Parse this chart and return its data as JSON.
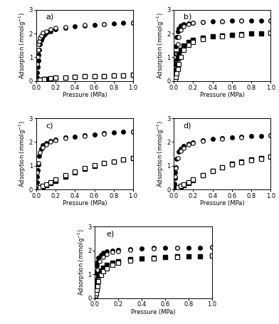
{
  "subplots": [
    {
      "label": "a)",
      "co2_ads_x": [
        0.005,
        0.01,
        0.015,
        0.02,
        0.025,
        0.03,
        0.04,
        0.05,
        0.06,
        0.07,
        0.08,
        0.1,
        0.15,
        0.2,
        0.3,
        0.4,
        0.5,
        0.6,
        0.7,
        0.8,
        0.9,
        1.0
      ],
      "co2_ads_y": [
        0.15,
        0.35,
        0.6,
        0.85,
        1.1,
        1.3,
        1.55,
        1.72,
        1.82,
        1.9,
        1.95,
        2.02,
        2.1,
        2.18,
        2.25,
        2.3,
        2.33,
        2.37,
        2.4,
        2.42,
        2.44,
        2.46
      ],
      "co2_des_x": [
        0.01,
        0.015,
        0.02,
        0.025,
        0.03,
        0.04,
        0.05,
        0.07,
        0.1,
        0.15,
        0.2,
        0.3,
        0.5,
        0.7,
        1.0
      ],
      "co2_des_y": [
        0.7,
        1.0,
        1.3,
        1.55,
        1.68,
        1.82,
        1.92,
        2.02,
        2.1,
        2.18,
        2.23,
        2.28,
        2.35,
        2.4,
        2.46
      ],
      "ch4_ads_x": [
        0.005,
        0.01,
        0.02,
        0.03,
        0.05,
        0.08,
        0.1,
        0.15,
        0.2,
        0.3,
        0.4,
        0.5,
        0.6,
        0.7,
        0.8,
        0.9,
        1.0
      ],
      "ch4_ads_y": [
        0.01,
        0.02,
        0.03,
        0.04,
        0.06,
        0.08,
        0.1,
        0.12,
        0.14,
        0.16,
        0.18,
        0.2,
        0.21,
        0.22,
        0.24,
        0.25,
        0.27
      ],
      "ch4_des_x": [
        0.02,
        0.04,
        0.08,
        0.15,
        0.2,
        0.3,
        0.4,
        0.5,
        0.6,
        0.7,
        0.8,
        0.9,
        1.0
      ],
      "ch4_des_y": [
        0.03,
        0.06,
        0.09,
        0.12,
        0.14,
        0.16,
        0.18,
        0.2,
        0.21,
        0.22,
        0.24,
        0.25,
        0.27
      ],
      "ylim": [
        0,
        3
      ]
    },
    {
      "label": "b)",
      "co2_ads_x": [
        0.005,
        0.01,
        0.015,
        0.02,
        0.03,
        0.04,
        0.05,
        0.07,
        0.1,
        0.15,
        0.2,
        0.3,
        0.4,
        0.5,
        0.6,
        0.7,
        0.8,
        0.9,
        1.0
      ],
      "co2_ads_y": [
        0.55,
        0.85,
        1.15,
        1.45,
        1.85,
        2.1,
        2.22,
        2.32,
        2.38,
        2.43,
        2.46,
        2.49,
        2.51,
        2.52,
        2.53,
        2.53,
        2.53,
        2.54,
        2.54
      ],
      "co2_des_x": [
        0.005,
        0.01,
        0.015,
        0.02,
        0.03,
        0.04,
        0.05,
        0.07,
        0.1,
        0.15,
        0.2,
        0.3,
        0.5,
        0.7,
        1.0
      ],
      "co2_des_y": [
        0.22,
        0.38,
        0.58,
        0.78,
        1.15,
        1.55,
        1.85,
        2.15,
        2.3,
        2.4,
        2.44,
        2.48,
        2.51,
        2.53,
        2.54
      ],
      "ch4_ads_x": [
        0.005,
        0.01,
        0.015,
        0.02,
        0.03,
        0.04,
        0.05,
        0.07,
        0.1,
        0.15,
        0.2,
        0.3,
        0.4,
        0.5,
        0.6,
        0.7,
        0.8,
        0.9,
        1.0
      ],
      "ch4_ads_y": [
        0.08,
        0.18,
        0.32,
        0.48,
        0.72,
        0.95,
        1.12,
        1.32,
        1.5,
        1.65,
        1.72,
        1.82,
        1.88,
        1.92,
        1.95,
        1.97,
        1.99,
        2.01,
        2.03
      ],
      "ch4_des_x": [
        0.005,
        0.01,
        0.015,
        0.02,
        0.03,
        0.04,
        0.05,
        0.07,
        0.1,
        0.15,
        0.2,
        0.3,
        0.5,
        0.7,
        1.0
      ],
      "ch4_des_y": [
        0.02,
        0.06,
        0.1,
        0.18,
        0.32,
        0.52,
        0.72,
        1.0,
        1.3,
        1.52,
        1.63,
        1.75,
        1.87,
        1.95,
        2.03
      ],
      "ylim": [
        0,
        3
      ]
    },
    {
      "label": "c)",
      "co2_ads_x": [
        0.005,
        0.01,
        0.015,
        0.02,
        0.03,
        0.05,
        0.07,
        0.1,
        0.15,
        0.2,
        0.3,
        0.4,
        0.5,
        0.6,
        0.7,
        0.8,
        0.9,
        1.0
      ],
      "co2_ads_y": [
        0.3,
        0.55,
        0.82,
        1.05,
        1.4,
        1.7,
        1.85,
        1.95,
        2.05,
        2.1,
        2.18,
        2.23,
        2.28,
        2.32,
        2.36,
        2.39,
        2.42,
        2.44
      ],
      "co2_des_x": [
        0.01,
        0.02,
        0.04,
        0.07,
        0.1,
        0.15,
        0.2,
        0.3,
        0.5,
        0.7,
        1.0
      ],
      "co2_des_y": [
        0.72,
        1.1,
        1.55,
        1.78,
        1.9,
        2.0,
        2.07,
        2.15,
        2.25,
        2.33,
        2.44
      ],
      "ch4_ads_x": [
        0.02,
        0.04,
        0.07,
        0.1,
        0.15,
        0.2,
        0.3,
        0.4,
        0.5,
        0.6,
        0.7,
        0.8,
        0.9,
        1.0
      ],
      "ch4_ads_y": [
        0.04,
        0.07,
        0.12,
        0.18,
        0.27,
        0.37,
        0.55,
        0.72,
        0.87,
        1.0,
        1.1,
        1.18,
        1.25,
        1.32
      ],
      "ch4_des_x": [
        0.04,
        0.07,
        0.1,
        0.15,
        0.2,
        0.3,
        0.4,
        0.5,
        0.6,
        0.7,
        0.8,
        0.9,
        1.0
      ],
      "ch4_des_y": [
        0.1,
        0.15,
        0.22,
        0.32,
        0.43,
        0.62,
        0.77,
        0.9,
        1.02,
        1.1,
        1.18,
        1.25,
        1.32
      ],
      "ylim": [
        0,
        3
      ]
    },
    {
      "label": "d)",
      "co2_ads_x": [
        0.005,
        0.01,
        0.015,
        0.02,
        0.03,
        0.05,
        0.07,
        0.1,
        0.15,
        0.2,
        0.3,
        0.4,
        0.5,
        0.6,
        0.7,
        0.8,
        0.9,
        1.0
      ],
      "co2_ads_y": [
        0.25,
        0.48,
        0.72,
        0.95,
        1.28,
        1.58,
        1.72,
        1.82,
        1.92,
        1.98,
        2.07,
        2.12,
        2.17,
        2.2,
        2.22,
        2.24,
        2.26,
        2.28
      ],
      "co2_des_x": [
        0.01,
        0.02,
        0.04,
        0.07,
        0.1,
        0.15,
        0.2,
        0.3,
        0.5,
        0.7,
        1.0
      ],
      "co2_des_y": [
        0.55,
        0.9,
        1.32,
        1.62,
        1.75,
        1.88,
        1.95,
        2.05,
        2.14,
        2.2,
        2.28
      ],
      "ch4_ads_x": [
        0.02,
        0.04,
        0.07,
        0.1,
        0.15,
        0.2,
        0.3,
        0.4,
        0.5,
        0.6,
        0.7,
        0.8,
        0.9,
        1.0
      ],
      "ch4_ads_y": [
        0.04,
        0.07,
        0.12,
        0.18,
        0.28,
        0.4,
        0.6,
        0.78,
        0.95,
        1.08,
        1.18,
        1.26,
        1.32,
        1.37
      ],
      "ch4_des_x": [
        0.04,
        0.07,
        0.1,
        0.15,
        0.2,
        0.3,
        0.4,
        0.5,
        0.6,
        0.7,
        0.8,
        0.9,
        1.0
      ],
      "ch4_des_y": [
        0.1,
        0.15,
        0.22,
        0.32,
        0.43,
        0.62,
        0.78,
        0.93,
        1.06,
        1.15,
        1.23,
        1.3,
        1.37
      ],
      "ylim": [
        0,
        3
      ]
    },
    {
      "label": "e)",
      "co2_ads_x": [
        0.005,
        0.01,
        0.015,
        0.02,
        0.03,
        0.05,
        0.07,
        0.1,
        0.15,
        0.2,
        0.3,
        0.4,
        0.5,
        0.6,
        0.7,
        0.8,
        0.9,
        1.0
      ],
      "co2_ads_y": [
        0.75,
        1.1,
        1.35,
        1.52,
        1.68,
        1.82,
        1.9,
        1.95,
        2.0,
        2.03,
        2.06,
        2.08,
        2.1,
        2.1,
        2.11,
        2.12,
        2.12,
        2.13
      ],
      "co2_des_x": [
        0.01,
        0.02,
        0.04,
        0.07,
        0.1,
        0.15,
        0.2,
        0.3,
        0.5,
        0.7,
        1.0
      ],
      "co2_des_y": [
        0.92,
        1.2,
        1.55,
        1.72,
        1.83,
        1.92,
        1.97,
        2.02,
        2.07,
        2.1,
        2.13
      ],
      "ch4_ads_x": [
        0.005,
        0.01,
        0.015,
        0.02,
        0.03,
        0.05,
        0.07,
        0.1,
        0.15,
        0.2,
        0.3,
        0.4,
        0.5,
        0.6,
        0.7,
        0.8,
        0.9,
        1.0
      ],
      "ch4_ads_y": [
        0.18,
        0.35,
        0.55,
        0.72,
        0.95,
        1.15,
        1.28,
        1.38,
        1.48,
        1.55,
        1.62,
        1.67,
        1.7,
        1.72,
        1.74,
        1.75,
        1.76,
        1.77
      ],
      "ch4_des_x": [
        0.005,
        0.01,
        0.015,
        0.02,
        0.03,
        0.05,
        0.07,
        0.1,
        0.15,
        0.2,
        0.3,
        0.5,
        0.7,
        1.0
      ],
      "ch4_des_y": [
        0.1,
        0.2,
        0.35,
        0.5,
        0.72,
        0.98,
        1.12,
        1.25,
        1.38,
        1.47,
        1.57,
        1.65,
        1.71,
        1.77
      ],
      "ylim": [
        0,
        3
      ]
    }
  ],
  "xlabel": "Pressure (MPa)",
  "ylabel": "Adsorption (mmolg$^{-1}$)",
  "marker_size": 4,
  "bg_color": "#ffffff"
}
